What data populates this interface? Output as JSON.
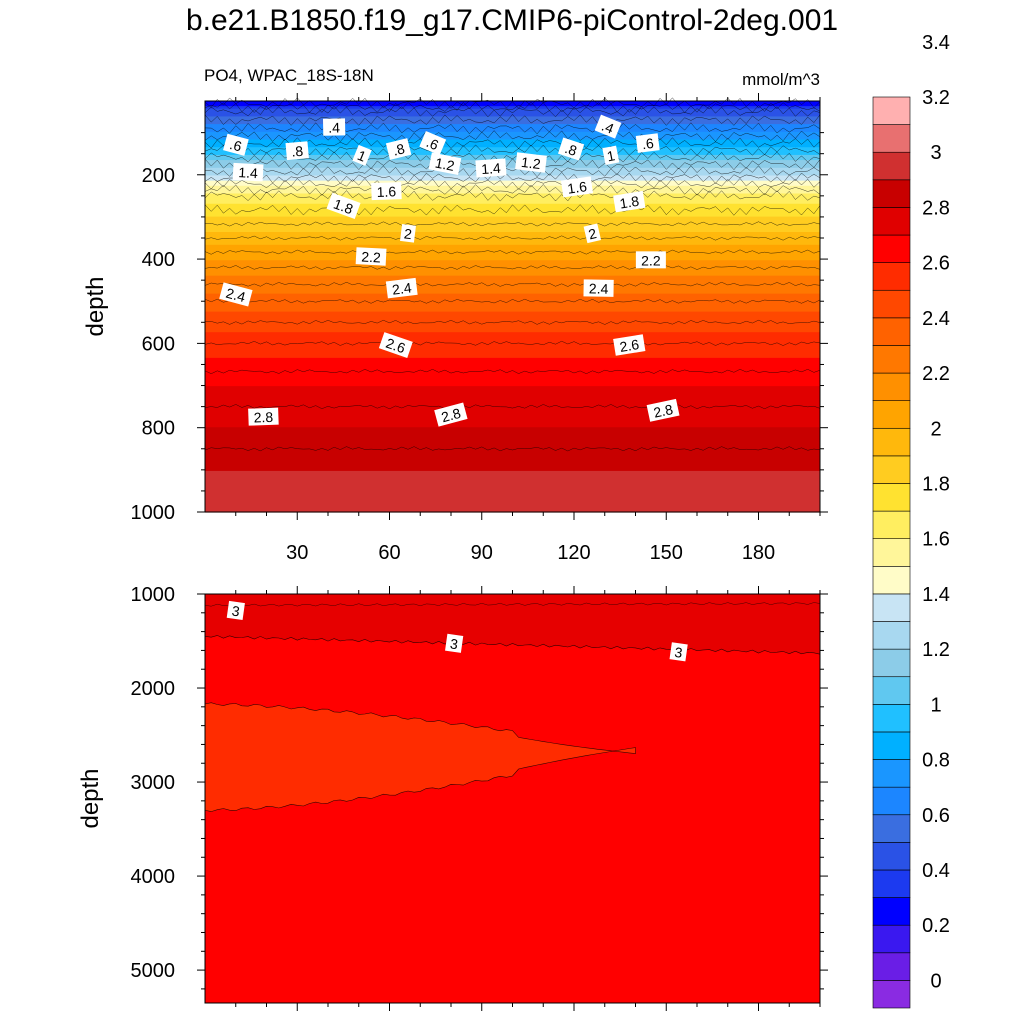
{
  "chart_data": {
    "type": "contour",
    "title": "b.e21.B1850.f19_g17.CMIP6-piControl-2deg.001",
    "variable_label": "PO4, WPAC_18S-18N",
    "units_label": "mmol/m^3",
    "colorbar": {
      "levels": [
        "0",
        "0.2",
        "0.4",
        "0.6",
        "0.8",
        "1",
        "1.2",
        "1.4",
        "1.6",
        "1.8",
        "2",
        "2.2",
        "2.4",
        "2.6",
        "2.8",
        "3",
        "3.2",
        "3.4"
      ],
      "colors": [
        "#8a2be2",
        "#6a1ee6",
        "#3a18f0",
        "#0000ff",
        "#1c3af0",
        "#2a52e6",
        "#3a6ee0",
        "#1c86ff",
        "#1a96ff",
        "#00b0ff",
        "#20c0ff",
        "#60c8f0",
        "#8ccce8",
        "#a8d8f0",
        "#c8e4f4",
        "#fffcc8",
        "#fff69a",
        "#ffee60",
        "#ffe230",
        "#ffcc20",
        "#ffb80c",
        "#ffa400",
        "#ff9000",
        "#ff7800",
        "#ff6200",
        "#ff4800",
        "#ff2c00",
        "#ff0000",
        "#e00000",
        "#c80000",
        "#d03030",
        "#e87070",
        "#ffb0b0"
      ]
    },
    "panels": [
      {
        "name": "upper",
        "ylabel": "depth",
        "ylim": [
          1000,
          25
        ],
        "xlim": [
          0,
          200
        ],
        "x_ticks": [
          30,
          60,
          90,
          120,
          150,
          180
        ],
        "y_ticks": [
          200,
          400,
          600,
          800,
          1000
        ],
        "profile": [
          [
            0,
            0
          ],
          [
            50,
            0.5
          ],
          [
            100,
            0.75
          ],
          [
            150,
            1.05
          ],
          [
            200,
            1.35
          ],
          [
            250,
            1.7
          ],
          [
            300,
            1.85
          ],
          [
            350,
            2.0
          ],
          [
            400,
            2.15
          ],
          [
            500,
            2.4
          ],
          [
            600,
            2.6
          ],
          [
            700,
            2.75
          ],
          [
            800,
            2.85
          ],
          [
            900,
            2.95
          ],
          [
            1000,
            3.0
          ]
        ],
        "contour_labels": [
          {
            "text": ".4",
            "x": 42,
            "d": 88
          },
          {
            "text": ".4",
            "x": 131,
            "d": 87
          },
          {
            "text": ".6",
            "x": 10,
            "d": 130
          },
          {
            "text": ".6",
            "x": 74,
            "d": 126
          },
          {
            "text": ".6",
            "x": 144,
            "d": 126
          },
          {
            "text": ".8",
            "x": 30,
            "d": 144
          },
          {
            "text": ".8",
            "x": 63,
            "d": 140
          },
          {
            "text": ".8",
            "x": 119,
            "d": 140
          },
          {
            "text": "1",
            "x": 51,
            "d": 155
          },
          {
            "text": "1",
            "x": 132,
            "d": 155
          },
          {
            "text": "1.2",
            "x": 78,
            "d": 175
          },
          {
            "text": "1.2",
            "x": 106,
            "d": 172
          },
          {
            "text": "1.4",
            "x": 14,
            "d": 195
          },
          {
            "text": "1.4",
            "x": 93,
            "d": 185
          },
          {
            "text": "1.6",
            "x": 59,
            "d": 240
          },
          {
            "text": "1.6",
            "x": 121,
            "d": 230
          },
          {
            "text": "1.8",
            "x": 45,
            "d": 275
          },
          {
            "text": "1.8",
            "x": 138,
            "d": 265
          },
          {
            "text": "2",
            "x": 66,
            "d": 340
          },
          {
            "text": "2",
            "x": 126,
            "d": 340
          },
          {
            "text": "2.2",
            "x": 54,
            "d": 395
          },
          {
            "text": "2.2",
            "x": 145,
            "d": 403
          },
          {
            "text": "2.4",
            "x": 10,
            "d": 485
          },
          {
            "text": "2.4",
            "x": 64,
            "d": 470
          },
          {
            "text": "2.4",
            "x": 128,
            "d": 470
          },
          {
            "text": "2.6",
            "x": 62,
            "d": 605
          },
          {
            "text": "2.6",
            "x": 138,
            "d": 605
          },
          {
            "text": "2.8",
            "x": 19,
            "d": 775
          },
          {
            "text": "2.8",
            "x": 80,
            "d": 770
          },
          {
            "text": "2.8",
            "x": 149,
            "d": 760
          }
        ]
      },
      {
        "name": "lower",
        "ylabel": "depth",
        "ylim": [
          5350,
          1000
        ],
        "xlim": [
          0,
          200
        ],
        "y_ticks": [
          1000,
          2000,
          3000,
          4000,
          5000
        ],
        "contour_labels": [
          {
            "text": "3",
            "x": 10,
            "d": 1180
          },
          {
            "text": "3",
            "x": 81,
            "d": 1530
          },
          {
            "text": "3",
            "x": 154,
            "d": 1620
          }
        ]
      }
    ]
  }
}
